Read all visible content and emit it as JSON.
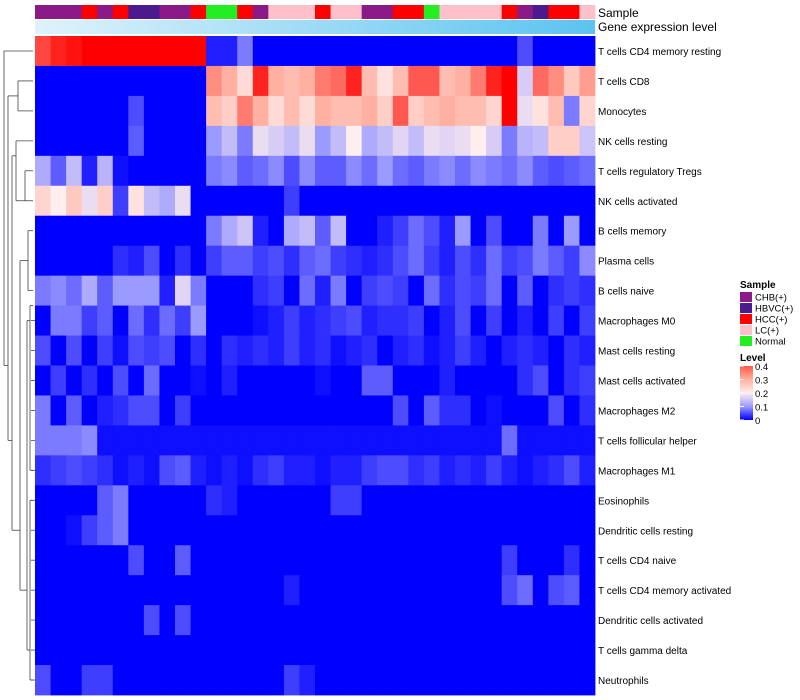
{
  "chart_data": {
    "type": "heatmap",
    "title": "",
    "annotation_labels": {
      "sample": "Sample",
      "gene_expression": "Gene expression level"
    },
    "rows": [
      "T cells CD4 memory resting",
      "T cells CD8",
      "Monocytes",
      "NK cells resting",
      "T cells regulatory  Tregs",
      "NK cells activated",
      "B cells memory",
      "Plasma cells",
      "B cells naive",
      "Macrophages M0",
      "Mast cells resting",
      "Mast cells activated",
      "Macrophages M2",
      "T cells follicular helper",
      "Macrophages M1",
      "Eosinophils",
      "Dendritic cells resting",
      "T cells CD4 naive",
      "T cells CD4 memory activated",
      "Dendritic cells activated",
      "T cells gamma delta",
      "Neutrophils"
    ],
    "sample_groups": [
      "CHB(+)",
      "HBVC(+)",
      "HCC(+)",
      "LC(+)",
      "Normal"
    ],
    "sample_colors": {
      "CHB(+)": "#8B1A89",
      "HBVC(+)": "#4B1A8C",
      "HCC(+)": "#FF0000",
      "LC(+)": "#FFC0CB",
      "Normal": "#22EE22"
    },
    "sample_annotation": [
      "CHB(+)",
      "CHB(+)",
      "CHB(+)",
      "HCC(+)",
      "CHB(+)",
      "HCC(+)",
      "HBVC(+)",
      "HBVC(+)",
      "CHB(+)",
      "CHB(+)",
      "HCC(+)",
      "Normal",
      "Normal",
      "HCC(+)",
      "CHB(+)",
      "LC(+)",
      "LC(+)",
      "LC(+)",
      "HCC(+)",
      "LC(+)",
      "LC(+)",
      "CHB(+)",
      "CHB(+)",
      "HCC(+)",
      "HCC(+)",
      "Normal",
      "LC(+)",
      "LC(+)",
      "LC(+)",
      "LC(+)",
      "HCC(+)",
      "CHB(+)",
      "HBVC(+)",
      "HCC(+)",
      "HCC(+)",
      "LC(+)"
    ],
    "legend": {
      "sample_title": "Sample",
      "level_title": "Level",
      "level_ticks": [
        "0.4",
        "0.3",
        "0.2",
        "0.1",
        "0"
      ]
    },
    "value_range": [
      0,
      0.4
    ],
    "values": [
      [
        0.36,
        0.38,
        0.39,
        0.42,
        0.42,
        0.42,
        0.42,
        0.42,
        0.42,
        0.42,
        0.42,
        0.02,
        0.02,
        0.08,
        0,
        0,
        0,
        0,
        0,
        0,
        0,
        0,
        0,
        0,
        0,
        0,
        0,
        0,
        0,
        0,
        0,
        0.05,
        0,
        0,
        0,
        0
      ],
      [
        0,
        0,
        0,
        0,
        0,
        0,
        0,
        0,
        0,
        0,
        0,
        0.32,
        0.3,
        0.23,
        0.38,
        0.3,
        0.28,
        0.3,
        0.33,
        0.34,
        0.38,
        0.28,
        0.22,
        0.28,
        0.35,
        0.35,
        0.28,
        0.3,
        0.33,
        0.38,
        0.4,
        0.16,
        0.34,
        0.32,
        0.26,
        0.31
      ],
      [
        0,
        0,
        0,
        0,
        0,
        0,
        0.05,
        0,
        0,
        0,
        0,
        0.28,
        0.25,
        0.33,
        0.3,
        0.23,
        0.28,
        0.23,
        0.3,
        0.28,
        0.28,
        0.3,
        0.25,
        0.35,
        0.25,
        0.28,
        0.3,
        0.28,
        0.28,
        0.24,
        0.42,
        0.18,
        0.22,
        0.28,
        0.08,
        0.24
      ],
      [
        0,
        0,
        0,
        0,
        0,
        0,
        0.06,
        0,
        0,
        0,
        0,
        0.1,
        0.14,
        0.08,
        0.18,
        0.16,
        0.14,
        0.18,
        0.1,
        0.14,
        0.2,
        0.12,
        0.14,
        0.17,
        0.14,
        0.18,
        0.17,
        0.18,
        0.2,
        0.16,
        0.08,
        0.13,
        0.14,
        0.25,
        0.25,
        0.15
      ],
      [
        0.12,
        0.06,
        0.14,
        0.02,
        0.13,
        0.01,
        0,
        0,
        0,
        0,
        0,
        0.08,
        0.09,
        0.06,
        0.07,
        0.09,
        0.05,
        0.09,
        0.06,
        0.06,
        0.09,
        0.07,
        0.1,
        0.07,
        0.06,
        0.08,
        0.09,
        0.07,
        0.09,
        0.08,
        0.07,
        0.09,
        0.06,
        0.05,
        0.06,
        0.07
      ],
      [
        0.24,
        0.2,
        0.26,
        0.18,
        0.25,
        0.04,
        0.22,
        0.14,
        0.12,
        0.18,
        0,
        0,
        0,
        0,
        0,
        0,
        0.04,
        0,
        0,
        0,
        0,
        0,
        0,
        0,
        0,
        0,
        0,
        0,
        0,
        0,
        0,
        0,
        0,
        0,
        0,
        0
      ],
      [
        0,
        0,
        0,
        0,
        0,
        0,
        0,
        0,
        0,
        0,
        0,
        0.08,
        0.12,
        0.15,
        0.02,
        0,
        0.12,
        0.14,
        0.06,
        0.14,
        0,
        0,
        0.02,
        0.04,
        0.07,
        0.05,
        0.02,
        0.1,
        0,
        0.05,
        0,
        0,
        0.08,
        0,
        0.1,
        0
      ],
      [
        0,
        0,
        0,
        0,
        0,
        0.03,
        0.02,
        0.05,
        0,
        0.03,
        0,
        0.04,
        0.06,
        0.06,
        0.04,
        0.05,
        0.03,
        0.06,
        0.07,
        0.04,
        0.03,
        0.02,
        0.03,
        0.05,
        0.07,
        0.04,
        0.02,
        0.05,
        0.03,
        0.07,
        0.04,
        0.05,
        0.08,
        0.06,
        0.04,
        0.09
      ],
      [
        0.08,
        0.09,
        0.07,
        0.12,
        0.06,
        0.1,
        0.1,
        0.1,
        0.02,
        0.17,
        0.08,
        0,
        0,
        0,
        0.03,
        0.04,
        0,
        0.07,
        0.02,
        0.08,
        0,
        0.04,
        0.05,
        0.04,
        0,
        0.07,
        0.03,
        0.05,
        0.04,
        0.07,
        0,
        0.06,
        0,
        0.03,
        0.04,
        0.03
      ],
      [
        0,
        0.08,
        0.08,
        0.04,
        0.06,
        0,
        0.07,
        0.03,
        0.07,
        0.04,
        0.1,
        0,
        0,
        0,
        0.01,
        0.02,
        0.04,
        0.02,
        0.03,
        0.04,
        0.05,
        0.02,
        0.03,
        0.03,
        0.04,
        0,
        0.02,
        0.05,
        0,
        0.04,
        0,
        0.02,
        0,
        0.04,
        0,
        0.04
      ],
      [
        0.05,
        0,
        0.05,
        0,
        0.04,
        0.01,
        0.05,
        0.04,
        0.05,
        0,
        0.03,
        0,
        0.03,
        0.02,
        0.03,
        0.02,
        0.04,
        0.02,
        0.03,
        0.01,
        0.02,
        0.03,
        0,
        0.02,
        0.03,
        0.01,
        0.02,
        0.04,
        0.02,
        0,
        0.02,
        0.03,
        0.02,
        0,
        0.03,
        0.02
      ],
      [
        0,
        0.04,
        0,
        0.03,
        0,
        0.05,
        0,
        0.07,
        0,
        0,
        0.01,
        0,
        0.02,
        0,
        0,
        0,
        0,
        0,
        0.01,
        0,
        0,
        0.06,
        0.06,
        0,
        0,
        0,
        0.02,
        0,
        0,
        0,
        0,
        0.03,
        0.05,
        0,
        0.03,
        0.04
      ],
      [
        0.08,
        0,
        0.06,
        0,
        0.02,
        0.03,
        0.05,
        0.05,
        0,
        0.04,
        0,
        0,
        0,
        0,
        0,
        0,
        0,
        0,
        0,
        0,
        0,
        0,
        0,
        0.05,
        0,
        0.06,
        0.03,
        0.03,
        0,
        0.01,
        0,
        0,
        0,
        0.05,
        0,
        0.03
      ],
      [
        0.08,
        0.08,
        0.08,
        0.09,
        0.01,
        0.01,
        0.01,
        0.01,
        0.01,
        0.01,
        0.01,
        0.01,
        0.01,
        0.01,
        0.01,
        0.01,
        0.01,
        0.01,
        0.01,
        0.01,
        0.01,
        0.01,
        0.01,
        0.01,
        0.01,
        0.01,
        0.01,
        0.01,
        0.01,
        0.01,
        0.07,
        0.01,
        0.01,
        0.01,
        0.01,
        0.01
      ],
      [
        0.03,
        0.04,
        0.05,
        0.04,
        0.03,
        0.01,
        0.02,
        0.01,
        0.05,
        0.06,
        0.02,
        0.01,
        0.02,
        0.01,
        0.03,
        0.04,
        0.02,
        0.02,
        0.01,
        0.02,
        0.02,
        0.04,
        0.05,
        0.05,
        0.03,
        0.04,
        0.02,
        0.03,
        0.02,
        0.04,
        0.02,
        0.01,
        0.02,
        0.03,
        0.05,
        0.02
      ],
      [
        0,
        0,
        0,
        0,
        0.06,
        0.08,
        0,
        0,
        0,
        0,
        0,
        0.03,
        0.02,
        0,
        0,
        0,
        0,
        0,
        0,
        0.04,
        0.04,
        0,
        0,
        0,
        0,
        0,
        0,
        0,
        0,
        0,
        0,
        0,
        0,
        0,
        0,
        0
      ],
      [
        0,
        0,
        0.01,
        0.04,
        0.06,
        0.08,
        0,
        0,
        0,
        0,
        0,
        0,
        0,
        0,
        0,
        0,
        0,
        0,
        0,
        0,
        0,
        0,
        0,
        0,
        0,
        0,
        0,
        0,
        0,
        0,
        0,
        0,
        0,
        0,
        0,
        0
      ],
      [
        0,
        0,
        0,
        0,
        0,
        0,
        0.05,
        0,
        0,
        0.06,
        0,
        0,
        0,
        0,
        0,
        0,
        0,
        0,
        0,
        0,
        0,
        0,
        0,
        0,
        0,
        0,
        0,
        0,
        0,
        0,
        0.04,
        0,
        0,
        0,
        0.03,
        0
      ],
      [
        0,
        0,
        0,
        0,
        0,
        0,
        0,
        0,
        0,
        0,
        0,
        0,
        0,
        0,
        0,
        0,
        0.02,
        0,
        0,
        0,
        0,
        0,
        0,
        0,
        0,
        0,
        0,
        0,
        0,
        0,
        0.05,
        0.07,
        0,
        0.05,
        0.06,
        0
      ],
      [
        0,
        0,
        0,
        0,
        0,
        0,
        0,
        0.05,
        0,
        0.05,
        0,
        0,
        0,
        0,
        0,
        0,
        0,
        0,
        0,
        0,
        0,
        0,
        0,
        0,
        0,
        0,
        0,
        0,
        0,
        0,
        0,
        0,
        0,
        0,
        0,
        0
      ],
      [
        0,
        0,
        0,
        0,
        0,
        0,
        0,
        0,
        0,
        0,
        0,
        0,
        0,
        0,
        0,
        0,
        0,
        0,
        0,
        0,
        0,
        0,
        0,
        0,
        0,
        0,
        0,
        0,
        0,
        0,
        0,
        0,
        0,
        0,
        0,
        0
      ],
      [
        0.05,
        0,
        0,
        0.04,
        0.04,
        0,
        0,
        0,
        0,
        0,
        0,
        0,
        0,
        0,
        0,
        0,
        0.04,
        0.02,
        0,
        0,
        0,
        0,
        0,
        0,
        0,
        0,
        0,
        0,
        0,
        0,
        0,
        0,
        0,
        0,
        0,
        0
      ]
    ]
  }
}
